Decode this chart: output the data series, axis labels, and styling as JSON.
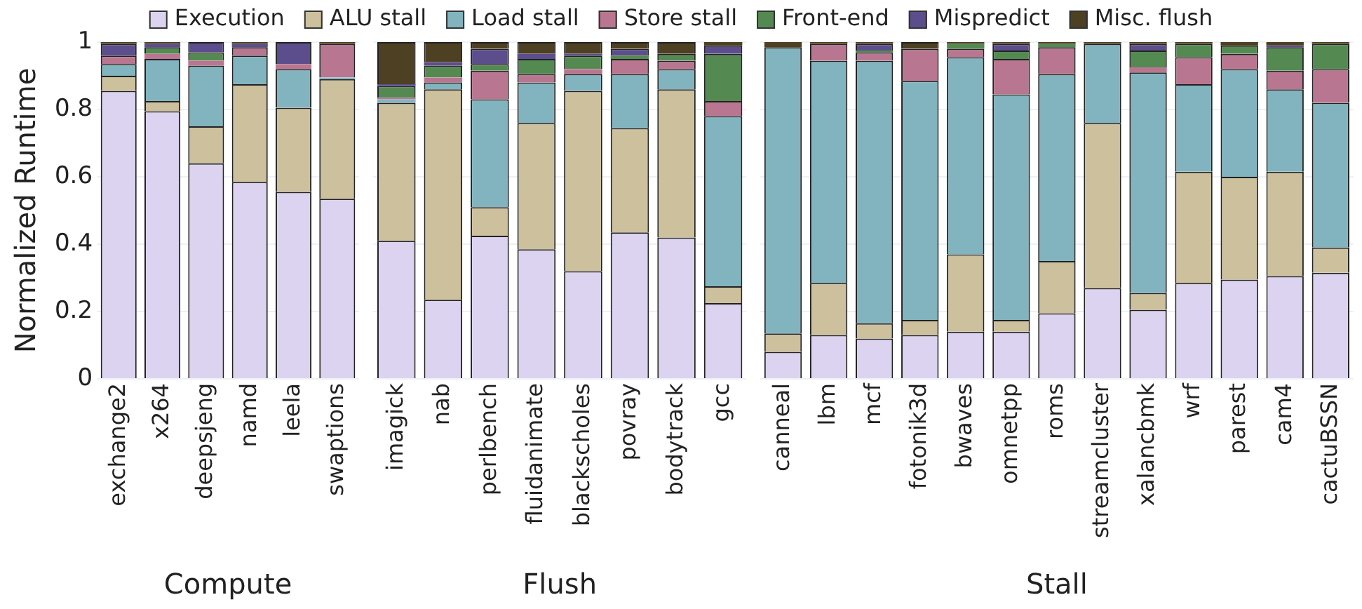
{
  "chart_data": [
    {
      "type": "bar",
      "stacked": true,
      "xlabel": "Compute",
      "ylabel": "Normalized Runtime",
      "ylim": [
        0,
        1
      ],
      "yticks": [
        0,
        0.2,
        0.4,
        0.6,
        0.8,
        1
      ],
      "grid": "y",
      "legend": "top",
      "categories": [
        "exchange2",
        "x264",
        "deepsjeng",
        "namd",
        "leela",
        "swaptions"
      ],
      "series": [
        {
          "name": "Execution",
          "color": "#dcd3f0",
          "values": [
            0.855,
            0.795,
            0.64,
            0.585,
            0.555,
            0.535
          ]
        },
        {
          "name": "ALU stall",
          "color": "#cdc09d",
          "values": [
            0.045,
            0.03,
            0.11,
            0.29,
            0.25,
            0.355
          ]
        },
        {
          "name": "Load stall",
          "color": "#82b4bf",
          "values": [
            0.035,
            0.125,
            0.18,
            0.085,
            0.115,
            0.005
          ]
        },
        {
          "name": "Store stall",
          "color": "#b97691",
          "values": [
            0.025,
            0.015,
            0.015,
            0.025,
            0.015,
            0.1
          ]
        },
        {
          "name": "Front-end",
          "color": "#548a52",
          "values": [
            0,
            0.02,
            0.025,
            0,
            0,
            0
          ]
        },
        {
          "name": "Mispredict",
          "color": "#5c4e8c",
          "values": [
            0.035,
            0.01,
            0.03,
            0.01,
            0.065,
            0
          ]
        },
        {
          "name": "Misc. flush",
          "color": "#4e4022",
          "values": [
            0.005,
            0.005,
            0,
            0.005,
            0,
            0.005
          ]
        }
      ]
    },
    {
      "type": "bar",
      "stacked": true,
      "xlabel": "Flush",
      "ylim": [
        0,
        1
      ],
      "yticks": [
        0,
        0.2,
        0.4,
        0.6,
        0.8,
        1
      ],
      "grid": "y",
      "tick_labels": "x",
      "categories": [
        "imagick",
        "nab",
        "perlbench",
        "fluidanimate",
        "blackscholes",
        "povray",
        "bodytrack",
        "gcc"
      ],
      "series": [
        {
          "color": "#dcd3f0",
          "values": [
            0.41,
            0.235,
            0.425,
            0.385,
            0.32,
            0.435,
            0.42,
            0.225
          ]
        },
        {
          "color": "#cdc09d",
          "values": [
            0.41,
            0.625,
            0.085,
            0.375,
            0.535,
            0.31,
            0.44,
            0.05
          ]
        },
        {
          "color": "#82b4bf",
          "values": [
            0.01,
            0.02,
            0.32,
            0.12,
            0.05,
            0.16,
            0.06,
            0.505
          ]
        },
        {
          "color": "#b97691",
          "values": [
            0.005,
            0.015,
            0.085,
            0.025,
            0.015,
            0.045,
            0.025,
            0.045
          ]
        },
        {
          "color": "#548a52",
          "values": [
            0.035,
            0.035,
            0.02,
            0.045,
            0.04,
            0.01,
            0.02,
            0.14
          ]
        },
        {
          "color": "#5c4e8c",
          "values": [
            0.005,
            0.01,
            0.045,
            0.015,
            0.005,
            0.02,
            0,
            0.025
          ]
        },
        {
          "color": "#4e4022",
          "values": [
            0.125,
            0.06,
            0.02,
            0.035,
            0.035,
            0.02,
            0.035,
            0.01
          ]
        }
      ]
    },
    {
      "type": "bar",
      "stacked": true,
      "xlabel": "Stall",
      "ylim": [
        0,
        1
      ],
      "yticks": [
        0,
        0.2,
        0.4,
        0.6,
        0.8,
        1
      ],
      "grid": "y",
      "tick_labels": "x",
      "categories": [
        "canneal",
        "lbm",
        "mcf",
        "fotonik3d",
        "bwaves",
        "omnetpp",
        "roms",
        "streamcluster",
        "xalancbmk",
        "wrf",
        "parest",
        "cam4",
        "cactuBSSN"
      ],
      "series": [
        {
          "color": "#dcd3f0",
          "values": [
            0.08,
            0.13,
            0.12,
            0.13,
            0.14,
            0.14,
            0.195,
            0.27,
            0.205,
            0.285,
            0.295,
            0.305,
            0.315
          ]
        },
        {
          "color": "#cdc09d",
          "values": [
            0.055,
            0.155,
            0.045,
            0.045,
            0.23,
            0.035,
            0.155,
            0.49,
            0.05,
            0.33,
            0.305,
            0.31,
            0.075
          ]
        },
        {
          "color": "#82b4bf",
          "values": [
            0.85,
            0.66,
            0.78,
            0.71,
            0.585,
            0.67,
            0.555,
            0.235,
            0.655,
            0.26,
            0.32,
            0.245,
            0.43
          ]
        },
        {
          "color": "#b97691",
          "values": [
            0,
            0.05,
            0.025,
            0.095,
            0.025,
            0.105,
            0.08,
            0,
            0.015,
            0.08,
            0.045,
            0.055,
            0.1
          ]
        },
        {
          "color": "#548a52",
          "values": [
            0,
            0,
            0.005,
            0,
            0.015,
            0.025,
            0.01,
            0,
            0.05,
            0.04,
            0.025,
            0.07,
            0.075
          ]
        },
        {
          "color": "#5c4e8c",
          "values": [
            0,
            0,
            0.02,
            0,
            0,
            0.02,
            0,
            0,
            0.02,
            0,
            0,
            0.005,
            0
          ]
        },
        {
          "color": "#4e4022",
          "values": [
            0.015,
            0.005,
            0.005,
            0.02,
            0.005,
            0.005,
            0.005,
            0.005,
            0.005,
            0.005,
            0.01,
            0.01,
            0.005
          ]
        }
      ]
    }
  ]
}
